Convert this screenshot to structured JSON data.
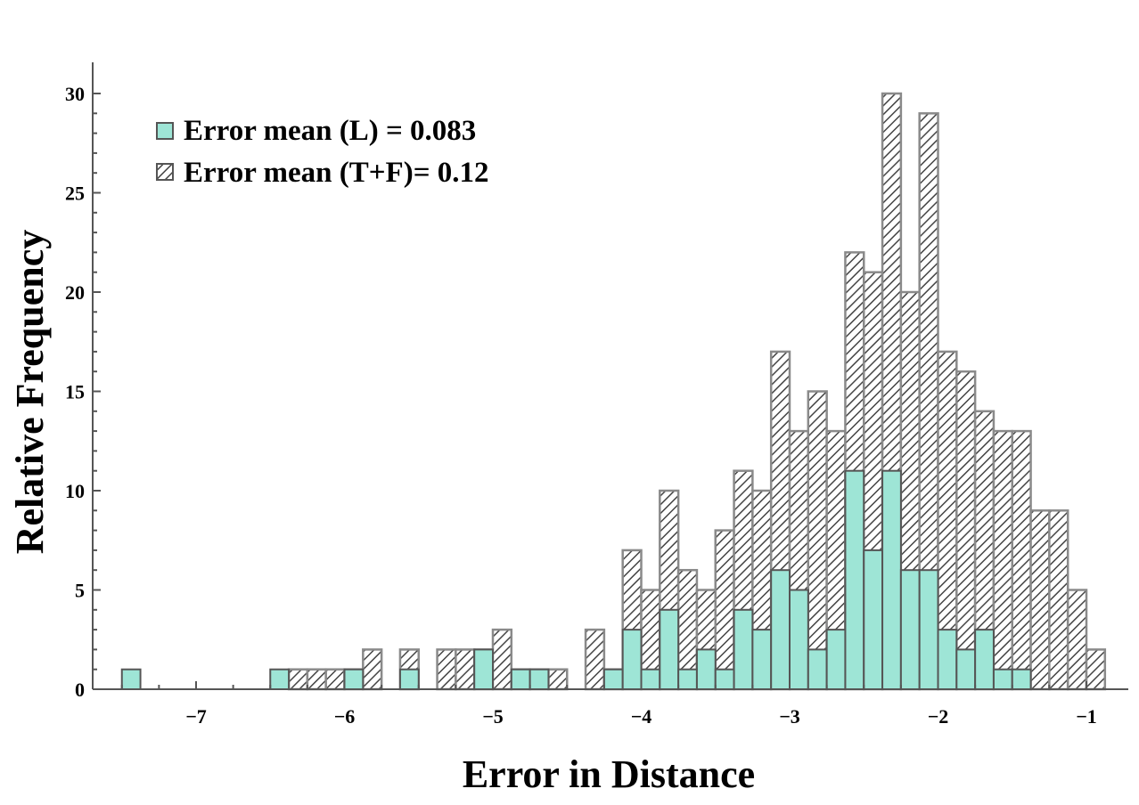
{
  "chart_data": {
    "type": "bar",
    "title": "",
    "xlabel": "Error in Distance",
    "ylabel": "Relative Frequency",
    "xlim": [
      -7.65,
      -0.75
    ],
    "ylim": [
      0,
      30.5
    ],
    "bin_width": 0.125,
    "grid": false,
    "legend_placement": "top-left",
    "xticks": [
      -7,
      -6,
      -5,
      -4,
      -3,
      -2,
      -1
    ],
    "xtick_labels": [
      "−7",
      "−6",
      "−5",
      "−4",
      "−3",
      "−2",
      "−1"
    ],
    "yticks": [
      0,
      5,
      10,
      15,
      20,
      25,
      30
    ],
    "ytick_labels": [
      "0",
      "5",
      "10",
      "15",
      "20",
      "25",
      "30"
    ],
    "series": [
      {
        "name": "Error mean (T+F)= 0.12",
        "legend_label": "Error mean (T+F)= 0.12",
        "pattern": "hatched",
        "color": "#555555",
        "bins": [
          {
            "x": -7.5,
            "value": 0
          },
          {
            "x": -6.375,
            "value": 1
          },
          {
            "x": -6.25,
            "value": 1
          },
          {
            "x": -6.125,
            "value": 1
          },
          {
            "x": -6.0,
            "value": 1
          },
          {
            "x": -5.875,
            "value": 2
          },
          {
            "x": -5.625,
            "value": 2
          },
          {
            "x": -5.375,
            "value": 2
          },
          {
            "x": -5.25,
            "value": 2
          },
          {
            "x": -5.125,
            "value": 2
          },
          {
            "x": -5.0,
            "value": 3
          },
          {
            "x": -4.875,
            "value": 1
          },
          {
            "x": -4.75,
            "value": 1
          },
          {
            "x": -4.625,
            "value": 1
          },
          {
            "x": -4.375,
            "value": 3
          },
          {
            "x": -4.25,
            "value": 1
          },
          {
            "x": -4.125,
            "value": 7
          },
          {
            "x": -4.0,
            "value": 5
          },
          {
            "x": -3.875,
            "value": 10
          },
          {
            "x": -3.75,
            "value": 6
          },
          {
            "x": -3.625,
            "value": 5
          },
          {
            "x": -3.5,
            "value": 8
          },
          {
            "x": -3.375,
            "value": 11
          },
          {
            "x": -3.25,
            "value": 10
          },
          {
            "x": -3.125,
            "value": 17
          },
          {
            "x": -3.0,
            "value": 13
          },
          {
            "x": -2.875,
            "value": 15
          },
          {
            "x": -2.75,
            "value": 13
          },
          {
            "x": -2.625,
            "value": 22
          },
          {
            "x": -2.5,
            "value": 21
          },
          {
            "x": -2.375,
            "value": 30
          },
          {
            "x": -2.25,
            "value": 20
          },
          {
            "x": -2.125,
            "value": 29
          },
          {
            "x": -2.0,
            "value": 17
          },
          {
            "x": -1.875,
            "value": 16
          },
          {
            "x": -1.75,
            "value": 14
          },
          {
            "x": -1.625,
            "value": 13
          },
          {
            "x": -1.5,
            "value": 13
          },
          {
            "x": -1.375,
            "value": 9
          },
          {
            "x": -1.25,
            "value": 9
          },
          {
            "x": -1.125,
            "value": 5
          },
          {
            "x": -1.0,
            "value": 2
          }
        ]
      },
      {
        "name": "Error mean (L) = 0.083",
        "legend_label": "Error mean (L) = 0.083",
        "pattern": "solid",
        "color": "#9ee5d6",
        "bins": [
          {
            "x": -7.5,
            "value": 1
          },
          {
            "x": -6.5,
            "value": 1
          },
          {
            "x": -6.0,
            "value": 1
          },
          {
            "x": -5.625,
            "value": 1
          },
          {
            "x": -5.125,
            "value": 2
          },
          {
            "x": -4.875,
            "value": 1
          },
          {
            "x": -4.75,
            "value": 1
          },
          {
            "x": -4.25,
            "value": 1
          },
          {
            "x": -4.125,
            "value": 3
          },
          {
            "x": -4.0,
            "value": 1
          },
          {
            "x": -3.875,
            "value": 4
          },
          {
            "x": -3.75,
            "value": 1
          },
          {
            "x": -3.625,
            "value": 2
          },
          {
            "x": -3.5,
            "value": 1
          },
          {
            "x": -3.375,
            "value": 4
          },
          {
            "x": -3.25,
            "value": 3
          },
          {
            "x": -3.125,
            "value": 6
          },
          {
            "x": -3.0,
            "value": 5
          },
          {
            "x": -2.875,
            "value": 2
          },
          {
            "x": -2.75,
            "value": 3
          },
          {
            "x": -2.625,
            "value": 11
          },
          {
            "x": -2.5,
            "value": 7
          },
          {
            "x": -2.375,
            "value": 11
          },
          {
            "x": -2.25,
            "value": 6
          },
          {
            "x": -2.125,
            "value": 6
          },
          {
            "x": -2.0,
            "value": 3
          },
          {
            "x": -1.875,
            "value": 2
          },
          {
            "x": -1.75,
            "value": 3
          },
          {
            "x": -1.625,
            "value": 1
          },
          {
            "x": -1.5,
            "value": 1
          }
        ]
      }
    ]
  }
}
